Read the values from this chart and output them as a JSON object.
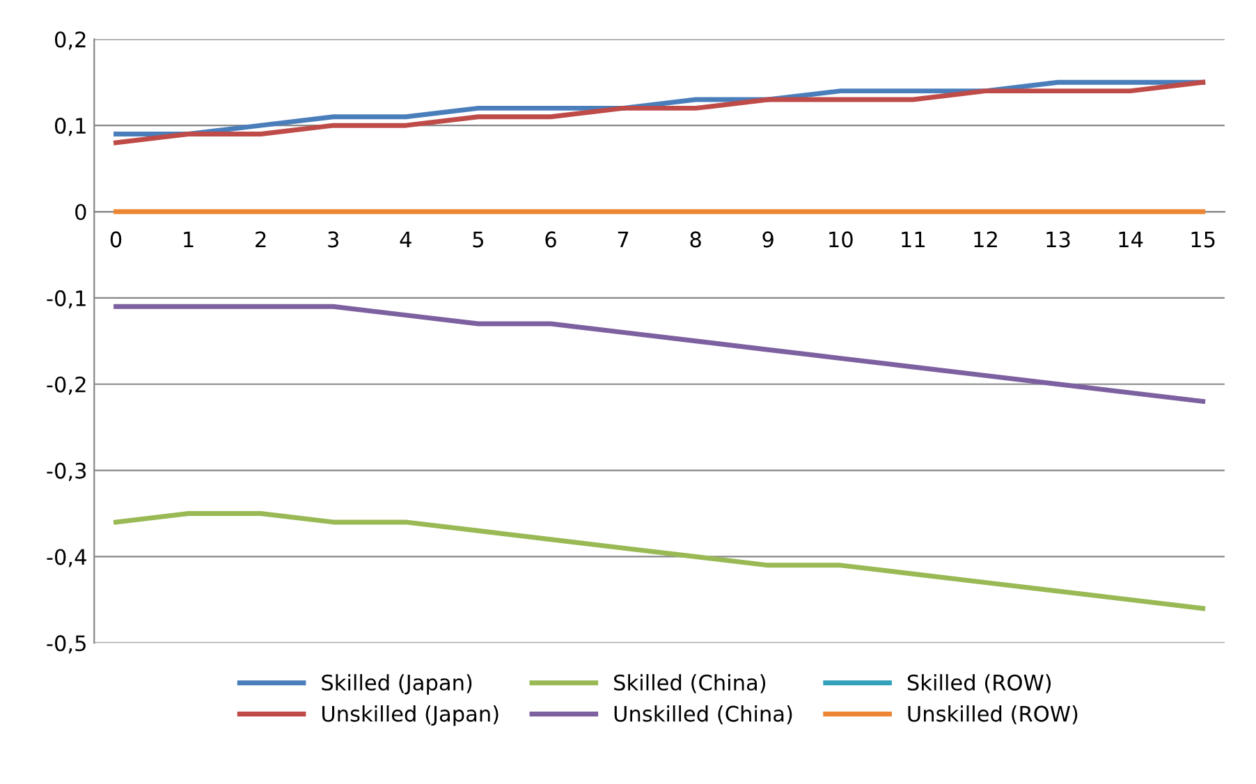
{
  "chart_data": {
    "type": "line",
    "categories": [
      "0",
      "1",
      "2",
      "3",
      "4",
      "5",
      "6",
      "7",
      "8",
      "9",
      "10",
      "11",
      "12",
      "13",
      "14",
      "15"
    ],
    "series": [
      {
        "name": "Skilled (Japan)",
        "color": "#4a7ebb",
        "values": [
          0.09,
          0.09,
          0.1,
          0.11,
          0.11,
          0.12,
          0.12,
          0.12,
          0.13,
          0.13,
          0.14,
          0.14,
          0.14,
          0.15,
          0.15,
          0.15
        ]
      },
      {
        "name": "Unskilled (Japan)",
        "color": "#be4b48",
        "values": [
          0.08,
          0.09,
          0.09,
          0.1,
          0.1,
          0.11,
          0.11,
          0.12,
          0.12,
          0.13,
          0.13,
          0.13,
          0.14,
          0.14,
          0.14,
          0.15
        ]
      },
      {
        "name": "Skilled (China)",
        "color": "#98b954",
        "values": [
          -0.36,
          -0.35,
          -0.35,
          -0.36,
          -0.36,
          -0.37,
          -0.38,
          -0.39,
          -0.4,
          -0.41,
          -0.41,
          -0.42,
          -0.43,
          -0.44,
          -0.45,
          -0.46
        ]
      },
      {
        "name": "Unskilled (China)",
        "color": "#7d60a0",
        "values": [
          -0.11,
          -0.11,
          -0.11,
          -0.11,
          -0.12,
          -0.13,
          -0.13,
          -0.14,
          -0.15,
          -0.16,
          -0.17,
          -0.18,
          -0.19,
          -0.2,
          -0.21,
          -0.22
        ]
      },
      {
        "name": "Skilled (ROW)",
        "color": "#31a0bb",
        "values": [
          null,
          null,
          null,
          null,
          null,
          null,
          null,
          null,
          null,
          null,
          null,
          null,
          null,
          null,
          null,
          null
        ]
      },
      {
        "name": "Unskilled (ROW)",
        "color": "#ec8632",
        "values": [
          0,
          0,
          0,
          0,
          0,
          0,
          0,
          0,
          0,
          0,
          0,
          0,
          0,
          0,
          0,
          0
        ]
      }
    ],
    "ylim": [
      -0.5,
      0.2
    ],
    "yticks": [
      {
        "value": -0.5,
        "label": "-0,5"
      },
      {
        "value": -0.4,
        "label": "-0,4"
      },
      {
        "value": -0.3,
        "label": "-0,3"
      },
      {
        "value": -0.2,
        "label": "-0,2"
      },
      {
        "value": -0.1,
        "label": "-0,1"
      },
      {
        "value": 0,
        "label": "0"
      },
      {
        "value": 0.1,
        "label": "0,1"
      },
      {
        "value": 0.2,
        "label": "0,2"
      }
    ],
    "grid": "y",
    "legend": "bottom",
    "marker": "none",
    "line_style": "solid"
  }
}
